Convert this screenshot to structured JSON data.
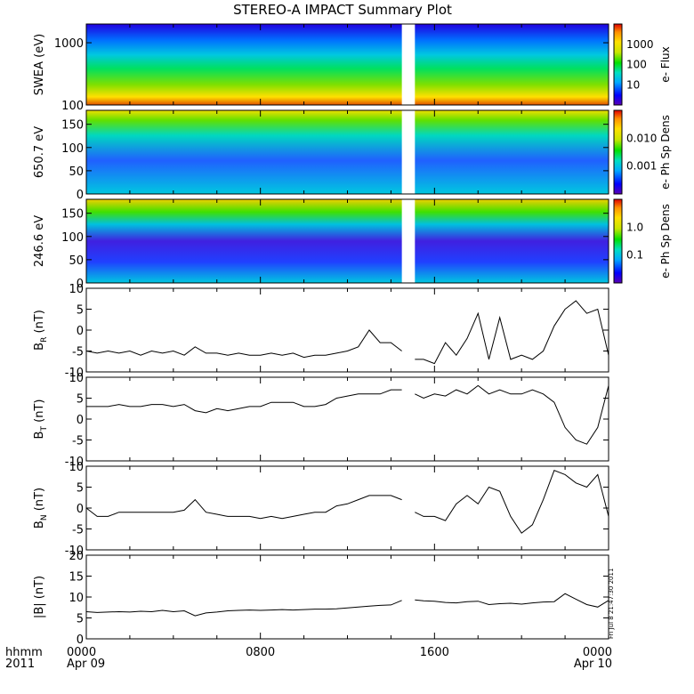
{
  "title": "STEREO-A IMPACT Summary Plot",
  "footer": {
    "left_top": "hhmm",
    "left_bottom": "2011",
    "stamp": "Fri Jul  8 21:47:30 2011"
  },
  "colors": {
    "axis": "#000000",
    "trace": "#000000",
    "colormap": [
      "#5a00b4",
      "#0000ff",
      "#00aaff",
      "#00e0c0",
      "#00e000",
      "#c8e600",
      "#ffe000",
      "#ff9000",
      "#e00000"
    ]
  },
  "chart_data": [
    {
      "id": "swea",
      "type": "heatmap",
      "ylabel": "SWEA (eV)",
      "yscale": "log",
      "ylim": [
        100,
        2000
      ],
      "yticks": [
        "100",
        "1000"
      ],
      "colorbar": {
        "label": "e- Flux",
        "ticks": [
          "10",
          "100",
          "1000"
        ],
        "scale": "log"
      },
      "data_gap_hours": [
        14.5,
        15.1
      ]
    },
    {
      "id": "pad650",
      "type": "heatmap",
      "ylabel": "650.7 eV",
      "ylim": [
        0,
        180
      ],
      "yticks": [
        "0",
        "50",
        "100",
        "150"
      ],
      "colorbar": {
        "label": "e- Ph Sp Dens",
        "ticks": [
          "0.001",
          "0.010"
        ],
        "scale": "log"
      },
      "data_gap_hours": [
        14.5,
        15.1
      ]
    },
    {
      "id": "pad246",
      "type": "heatmap",
      "ylabel": "246.6 eV",
      "ylim": [
        0,
        180
      ],
      "yticks": [
        "0",
        "50",
        "100",
        "150"
      ],
      "colorbar": {
        "label": "e- Ph Sp Dens",
        "ticks": [
          "0.1",
          "1.0"
        ],
        "scale": "log"
      },
      "data_gap_hours": [
        14.5,
        15.1
      ]
    },
    {
      "id": "br",
      "type": "line",
      "ylabel": "B",
      "ysub": "R",
      "yunit": " (nT)",
      "ylim": [
        -10,
        10
      ],
      "yticks": [
        "-10",
        "-5",
        "0",
        "5",
        "10"
      ],
      "x_hours": [
        0,
        0.5,
        1,
        1.5,
        2,
        2.5,
        3,
        3.5,
        4,
        4.5,
        5,
        5.5,
        6,
        6.5,
        7,
        7.5,
        8,
        8.5,
        9,
        9.5,
        10,
        10.5,
        11,
        11.5,
        12,
        12.5,
        13,
        13.5,
        14,
        14.5,
        15.1,
        15.5,
        16,
        16.5,
        17,
        17.5,
        18,
        18.5,
        19,
        19.5,
        20,
        20.5,
        21,
        21.5,
        22,
        22.5,
        23,
        23.5,
        24
      ],
      "values": [
        -5,
        -5.5,
        -5,
        -5.5,
        -5,
        -6,
        -5,
        -5.5,
        -5,
        -6,
        -4,
        -5.5,
        -5.5,
        -6,
        -5.5,
        -6,
        -6,
        -5.5,
        -6,
        -5.5,
        -6.5,
        -6,
        -6,
        -5.5,
        -5,
        -4,
        0,
        -3,
        -3,
        -5,
        -7,
        -7,
        -8,
        -3,
        -6,
        -2,
        4,
        -7,
        3,
        -7,
        -6,
        -7,
        -5,
        1,
        5,
        7,
        4,
        5,
        -6
      ]
    },
    {
      "id": "bt",
      "type": "line",
      "ylabel": "B",
      "ysub": "T",
      "yunit": " (nT)",
      "ylim": [
        -10,
        10
      ],
      "yticks": [
        "-10",
        "-5",
        "0",
        "5",
        "10"
      ],
      "x_hours": [
        0,
        0.5,
        1,
        1.5,
        2,
        2.5,
        3,
        3.5,
        4,
        4.5,
        5,
        5.5,
        6,
        6.5,
        7,
        7.5,
        8,
        8.5,
        9,
        9.5,
        10,
        10.5,
        11,
        11.5,
        12,
        12.5,
        13,
        13.5,
        14,
        14.5,
        15.1,
        15.5,
        16,
        16.5,
        17,
        17.5,
        18,
        18.5,
        19,
        19.5,
        20,
        20.5,
        21,
        21.5,
        22,
        22.5,
        23,
        23.5,
        24
      ],
      "values": [
        3,
        3,
        3,
        3.5,
        3,
        3,
        3.5,
        3.5,
        3,
        3.5,
        2,
        1.5,
        2.5,
        2,
        2.5,
        3,
        3,
        4,
        4,
        4,
        3,
        3,
        3.5,
        5,
        5.5,
        6,
        6,
        6,
        7,
        7,
        6,
        5,
        6,
        5.5,
        7,
        6,
        8,
        6,
        7,
        6,
        6,
        7,
        6,
        4,
        -2,
        -5,
        -6,
        -2,
        8
      ]
    },
    {
      "id": "bn",
      "type": "line",
      "ylabel": "B",
      "ysub": "N",
      "yunit": " (nT)",
      "ylim": [
        -10,
        10
      ],
      "yticks": [
        "-10",
        "-5",
        "0",
        "5",
        "10"
      ],
      "x_hours": [
        0,
        0.5,
        1,
        1.5,
        2,
        2.5,
        3,
        3.5,
        4,
        4.5,
        5,
        5.5,
        6,
        6.5,
        7,
        7.5,
        8,
        8.5,
        9,
        9.5,
        10,
        10.5,
        11,
        11.5,
        12,
        12.5,
        13,
        13.5,
        14,
        14.5,
        15.1,
        15.5,
        16,
        16.5,
        17,
        17.5,
        18,
        18.5,
        19,
        19.5,
        20,
        20.5,
        21,
        21.5,
        22,
        22.5,
        23,
        23.5,
        24
      ],
      "values": [
        0,
        -2,
        -2,
        -1,
        -1,
        -1,
        -1,
        -1,
        -1,
        -0.5,
        2,
        -1,
        -1.5,
        -2,
        -2,
        -2,
        -2.5,
        -2,
        -2.5,
        -2,
        -1.5,
        -1,
        -1,
        0.5,
        1,
        2,
        3,
        3,
        3,
        2,
        -1,
        -2,
        -2,
        -3,
        1,
        3,
        1,
        5,
        4,
        -2,
        -6,
        -4,
        2,
        9,
        8,
        6,
        5,
        8,
        -2
      ]
    },
    {
      "id": "bmag",
      "type": "line",
      "ylabel": "|B| (nT)",
      "ylim": [
        0,
        20
      ],
      "yticks": [
        "0",
        "5",
        "10",
        "15",
        "20"
      ],
      "x_hours": [
        0,
        0.5,
        1,
        1.5,
        2,
        2.5,
        3,
        3.5,
        4,
        4.5,
        5,
        5.5,
        6,
        6.5,
        7,
        7.5,
        8,
        8.5,
        9,
        9.5,
        10,
        10.5,
        11,
        11.5,
        12,
        12.5,
        13,
        13.5,
        14,
        14.5,
        15.1,
        15.5,
        16,
        16.5,
        17,
        17.5,
        18,
        18.5,
        19,
        19.5,
        20,
        20.5,
        21,
        21.5,
        22,
        22.5,
        23,
        23.5,
        24
      ],
      "values": [
        6.5,
        6.3,
        6.4,
        6.5,
        6.4,
        6.6,
        6.5,
        6.8,
        6.5,
        6.7,
        5.5,
        6.2,
        6.4,
        6.7,
        6.8,
        6.9,
        6.8,
        6.9,
        7,
        6.9,
        7,
        7.1,
        7.1,
        7.2,
        7.4,
        7.6,
        7.8,
        8,
        8.1,
        9.2,
        9.3,
        9.1,
        9,
        8.7,
        8.6,
        8.9,
        9,
        8.2,
        8.4,
        8.5,
        8.3,
        8.6,
        8.8,
        8.9,
        10.8,
        9.5,
        8.2,
        7.6,
        9.2
      ]
    }
  ],
  "xaxis": {
    "range_hours": [
      0,
      24
    ],
    "ticks": [
      {
        "hours": 0,
        "top": "0000",
        "bottom": "Apr 09"
      },
      {
        "hours": 8,
        "top": "0800",
        "bottom": ""
      },
      {
        "hours": 16,
        "top": "1600",
        "bottom": ""
      },
      {
        "hours": 24,
        "top": "0000",
        "bottom": "Apr 10"
      }
    ]
  }
}
